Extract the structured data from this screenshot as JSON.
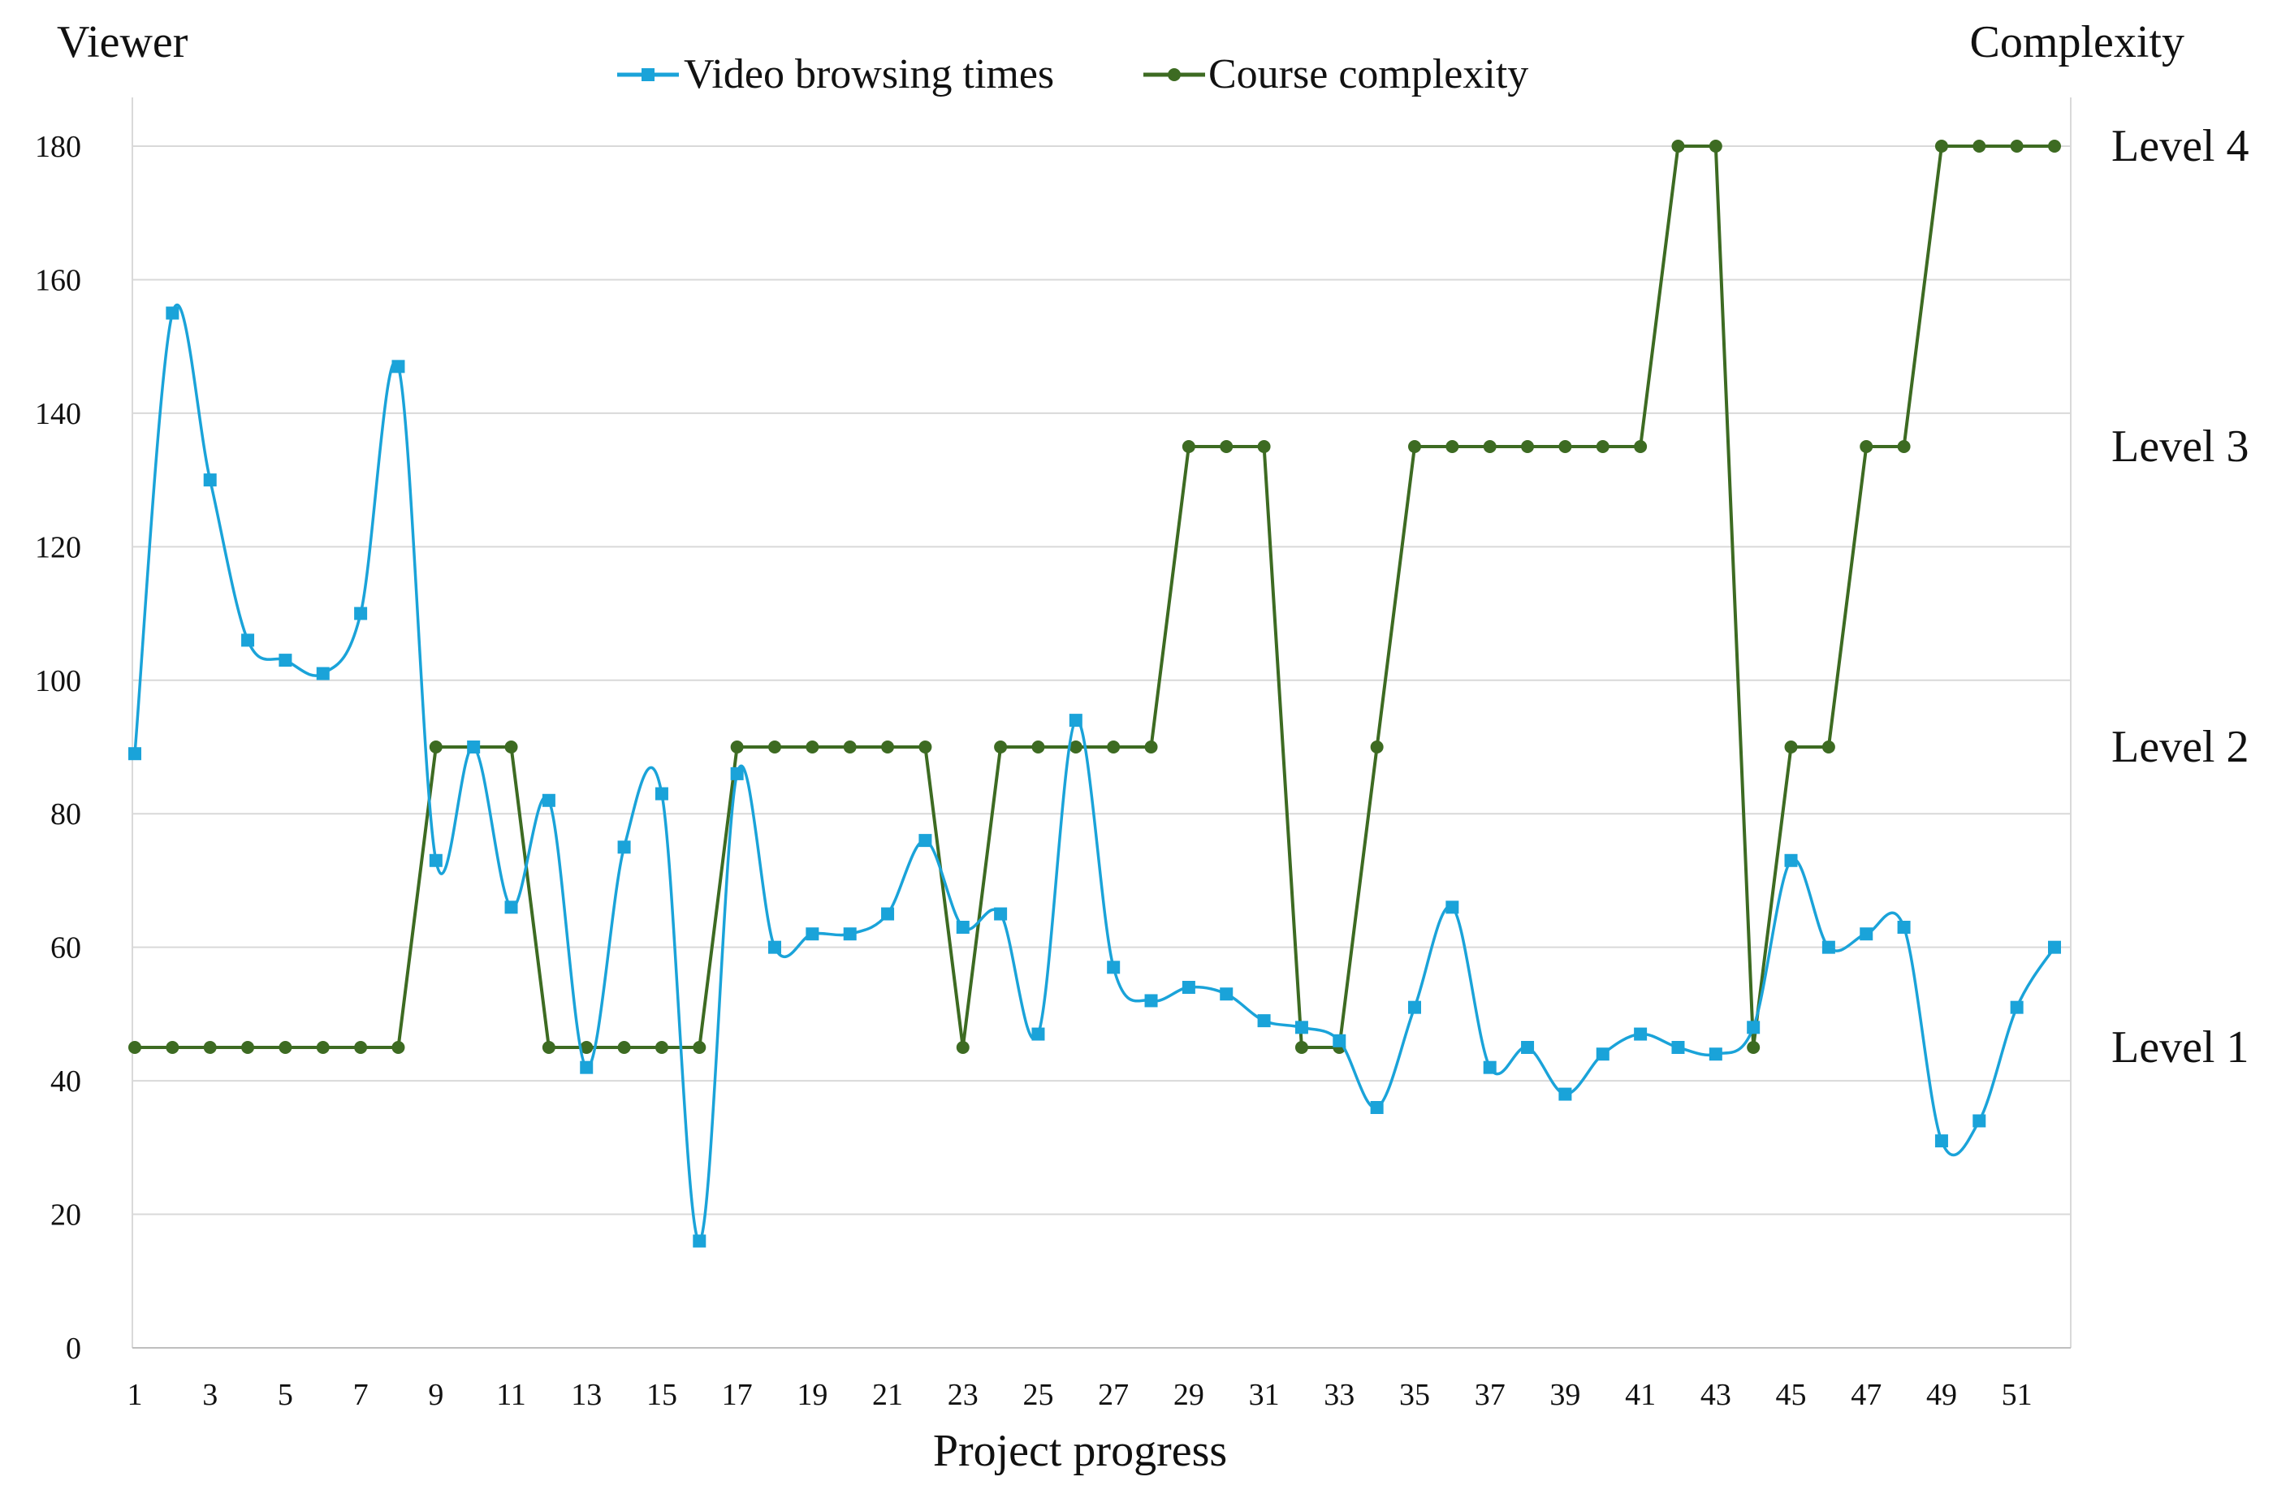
{
  "chart_data": {
    "type": "line",
    "y_left_label": "Viewer",
    "y_right_label": "Complexity",
    "xlabel": "Project progress",
    "x": [
      1,
      2,
      3,
      4,
      5,
      6,
      7,
      8,
      9,
      10,
      11,
      12,
      13,
      14,
      15,
      16,
      17,
      18,
      19,
      20,
      21,
      22,
      23,
      24,
      25,
      26,
      27,
      28,
      29,
      30,
      31,
      32,
      33,
      34,
      35,
      36,
      37,
      38,
      39,
      40,
      41,
      42,
      43,
      44,
      45,
      46,
      47,
      48,
      49,
      50,
      51,
      52
    ],
    "x_tick_labels": [
      "1",
      "3",
      "5",
      "7",
      "9",
      "11",
      "13",
      "15",
      "17",
      "19",
      "21",
      "23",
      "25",
      "27",
      "29",
      "31",
      "33",
      "35",
      "37",
      "39",
      "41",
      "43",
      "45",
      "47",
      "49",
      "51"
    ],
    "ylim": [
      0,
      180
    ],
    "y_ticks": [
      0,
      20,
      40,
      60,
      80,
      100,
      120,
      140,
      160,
      180
    ],
    "grid": true,
    "legend_position": "top-center",
    "right_axis_levels": [
      {
        "label": "Level 1",
        "value": 45
      },
      {
        "label": "Level 2",
        "value": 90
      },
      {
        "label": "Level 3",
        "value": 135
      },
      {
        "label": "Level 4",
        "value": 180
      }
    ],
    "series": [
      {
        "name": "Video browsing times",
        "color": "#1aa3d9",
        "marker": "square",
        "smooth": true,
        "values": [
          89,
          155,
          130,
          106,
          103,
          101,
          110,
          147,
          73,
          90,
          66,
          82,
          42,
          75,
          83,
          16,
          86,
          60,
          62,
          62,
          65,
          76,
          63,
          65,
          47,
          94,
          57,
          52,
          54,
          53,
          49,
          48,
          46,
          36,
          51,
          66,
          42,
          45,
          38,
          44,
          47,
          45,
          44,
          48,
          73,
          60,
          62,
          63,
          31,
          34,
          51,
          60
        ]
      },
      {
        "name": "Course complexity",
        "color": "#3d6b22",
        "marker": "circle",
        "smooth": false,
        "values": [
          45,
          45,
          45,
          45,
          45,
          45,
          45,
          45,
          90,
          90,
          90,
          45,
          45,
          45,
          45,
          45,
          90,
          90,
          90,
          90,
          90,
          90,
          45,
          90,
          90,
          90,
          90,
          90,
          135,
          135,
          135,
          45,
          45,
          90,
          135,
          135,
          135,
          135,
          135,
          135,
          135,
          180,
          180,
          45,
          90,
          90,
          135,
          135,
          180,
          180,
          180,
          180
        ]
      }
    ]
  }
}
